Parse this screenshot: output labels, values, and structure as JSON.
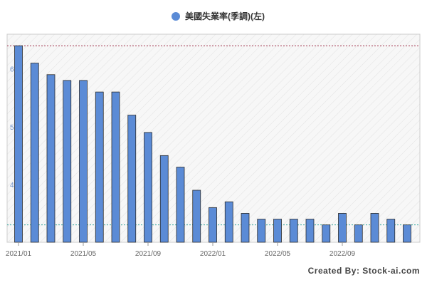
{
  "chart_data": {
    "type": "bar",
    "legend": {
      "label": "美國失業率(季調)(左)",
      "placement": "top-center"
    },
    "series": [
      {
        "name": "美國失業率(季調)(左)",
        "color": "#5b8bd6",
        "values": [
          6.4,
          6.1,
          5.9,
          5.8,
          5.8,
          5.6,
          5.6,
          5.2,
          4.9,
          4.5,
          4.3,
          3.9,
          3.6,
          3.7,
          3.5,
          3.4,
          3.4,
          3.4,
          3.4,
          3.3,
          3.5,
          3.3,
          3.5,
          3.4,
          3.3
        ]
      }
    ],
    "categories": [
      "2021/01",
      "2021/02",
      "2021/03",
      "2021/04",
      "2021/05",
      "2021/06",
      "2021/07",
      "2021/08",
      "2021/09",
      "2021/10",
      "2021/11",
      "2021/12",
      "2022/01",
      "2022/02",
      "2022/03",
      "2022/04",
      "2022/05",
      "2022/06",
      "2022/07",
      "2022/08",
      "2022/09",
      "2022/10",
      "2022/11",
      "2022/12",
      "2023/01"
    ],
    "x_ticks": [
      {
        "index": 0,
        "label": "2021/01"
      },
      {
        "index": 4,
        "label": "2021/05"
      },
      {
        "index": 8,
        "label": "2021/09"
      },
      {
        "index": 12,
        "label": "2022/01"
      },
      {
        "index": 16,
        "label": "2022/05"
      },
      {
        "index": 20,
        "label": "2022/09"
      }
    ],
    "y_ticks": [
      4,
      5,
      6
    ],
    "ylim": [
      3.0,
      6.6
    ],
    "reference_lines": [
      {
        "value": 6.4,
        "color": "#a0304a"
      },
      {
        "value": 3.3,
        "color": "#2aa39a"
      }
    ],
    "grid": false,
    "background_pattern": "diagonal-hatch"
  },
  "credit": "Created By: Stock-ai.com"
}
